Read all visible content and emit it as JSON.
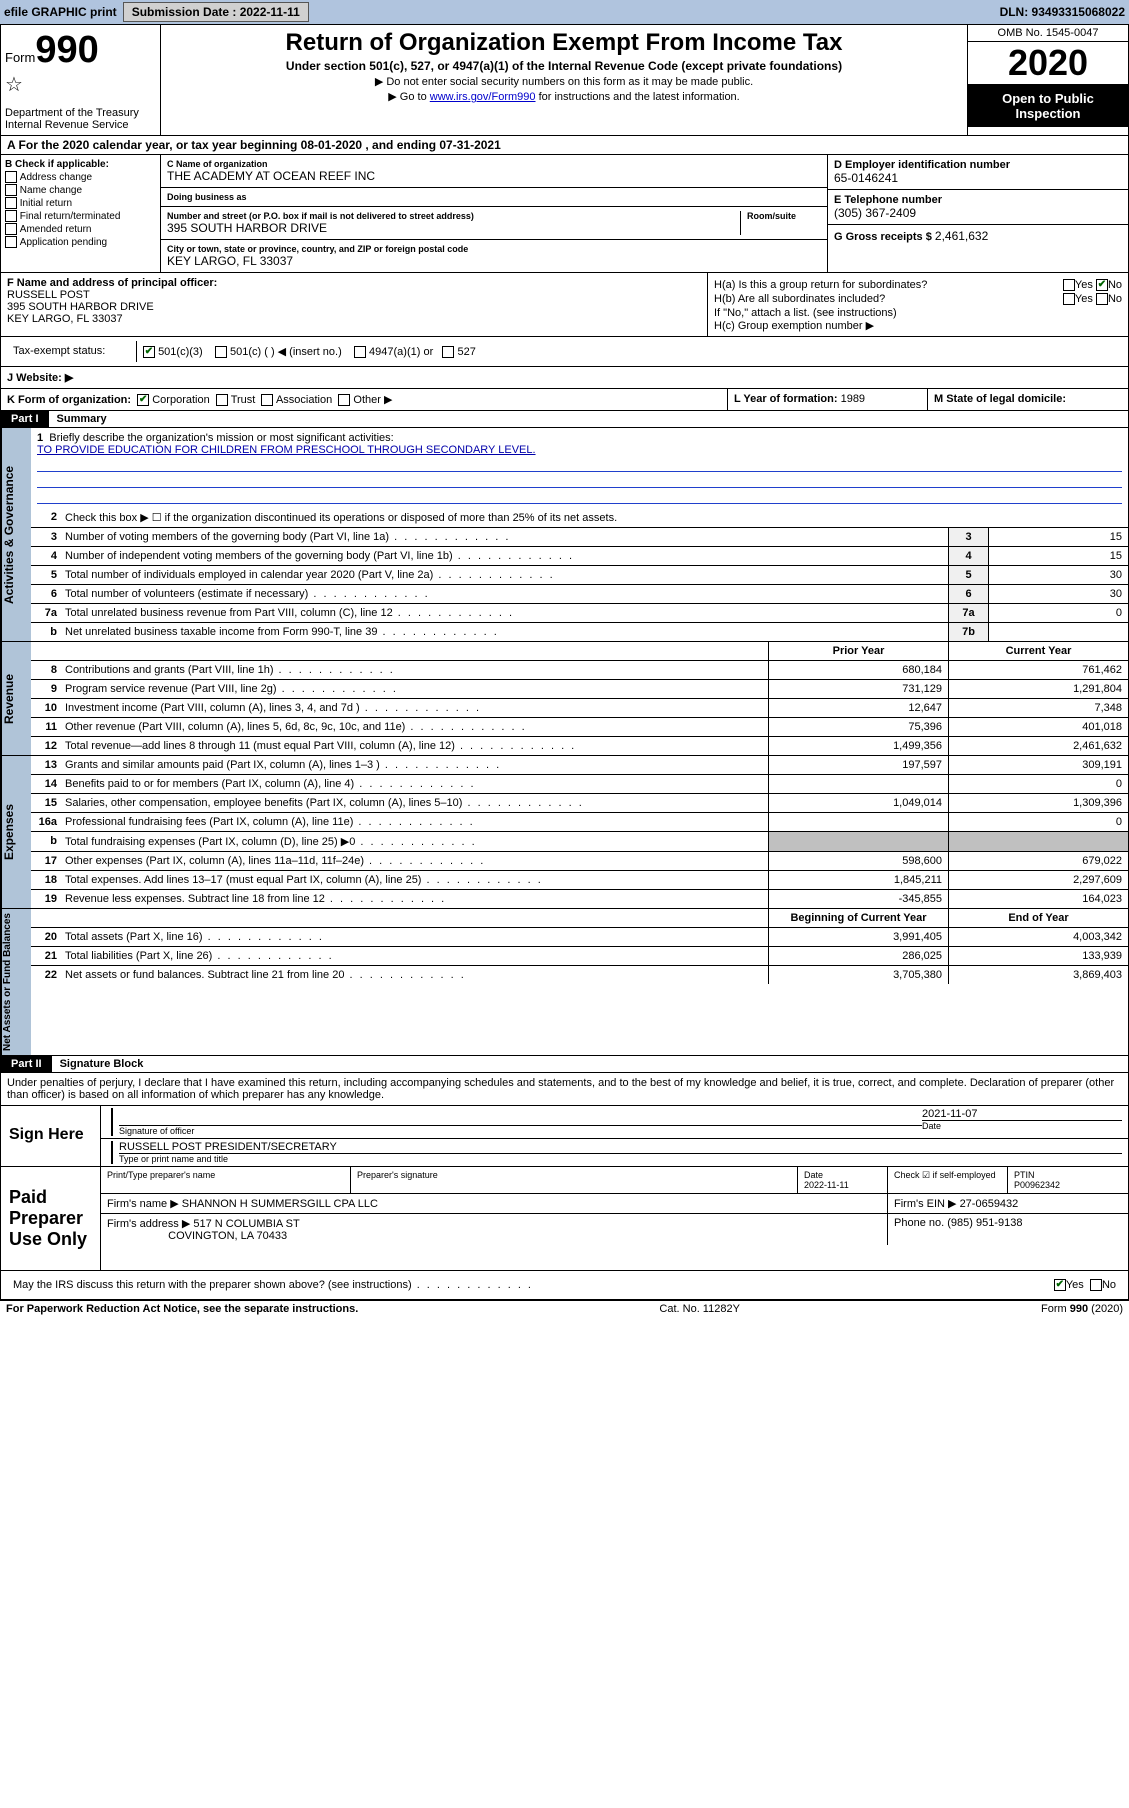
{
  "topbar": {
    "efile": "efile GRAPHIC print",
    "submission_label": "Submission Date : 2022-11-11",
    "dln": "DLN: 93493315068022"
  },
  "header": {
    "form_label": "Form",
    "form_number": "990",
    "title": "Return of Organization Exempt From Income Tax",
    "subtitle": "Under section 501(c), 527, or 4947(a)(1) of the Internal Revenue Code (except private foundations)",
    "note1": "▶ Do not enter social security numbers on this form as it may be made public.",
    "note2_prefix": "▶ Go to ",
    "note2_link": "www.irs.gov/Form990",
    "note2_suffix": " for instructions and the latest information.",
    "dept": "Department of the Treasury",
    "irs": "Internal Revenue Service",
    "omb": "OMB No. 1545-0047",
    "year": "2020",
    "open_public": "Open to Public Inspection"
  },
  "section_a": "A For the 2020 calendar year, or tax year beginning 08-01-2020   , and ending 07-31-2021",
  "check_b": {
    "label": "B Check if applicable:",
    "options": [
      "Address change",
      "Name change",
      "Initial return",
      "Final return/terminated",
      "Amended return",
      "Application pending"
    ]
  },
  "col_c": {
    "name_label": "C Name of organization",
    "name": "THE ACADEMY AT OCEAN REEF INC",
    "dba_label": "Doing business as",
    "dba": "",
    "street_label": "Number and street (or P.O. box if mail is not delivered to street address)",
    "room_label": "Room/suite",
    "street": "395 SOUTH HARBOR DRIVE",
    "city_label": "City or town, state or province, country, and ZIP or foreign postal code",
    "city": "KEY LARGO, FL  33037"
  },
  "col_d": {
    "ein_label": "D Employer identification number",
    "ein": "65-0146241",
    "phone_label": "E Telephone number",
    "phone": "(305) 367-2409",
    "gross_label": "G Gross receipts $",
    "gross": "2,461,632"
  },
  "col_f": {
    "label": "F Name and address of principal officer:",
    "name": "RUSSELL POST",
    "street": "395 SOUTH HARBOR DRIVE",
    "city": "KEY LARGO, FL  33037"
  },
  "col_h": {
    "ha_label": "H(a)  Is this a group return for subordinates?",
    "hb_label": "H(b)  Are all subordinates included?",
    "hb_note": "If \"No,\" attach a list. (see instructions)",
    "hc_label": "H(c)  Group exemption number ▶",
    "yes": "Yes",
    "no": "No"
  },
  "tax_status": {
    "label": "Tax-exempt status:",
    "opt1": "501(c)(3)",
    "opt2": "501(c) (  ) ◀ (insert no.)",
    "opt3": "4947(a)(1) or",
    "opt4": "527"
  },
  "website": {
    "label": "J   Website: ▶"
  },
  "row_k": {
    "k_label": "K Form of organization:",
    "k_opts": [
      "Corporation",
      "Trust",
      "Association",
      "Other ▶"
    ],
    "l_label": "L Year of formation:",
    "l_val": "1989",
    "m_label": "M State of legal domicile:",
    "m_val": ""
  },
  "part1": {
    "header": "Part I",
    "title": "Summary"
  },
  "governance": {
    "tab": "Activities & Governance",
    "line1_label": "Briefly describe the organization's mission or most significant activities:",
    "mission": "TO PROVIDE EDUCATION FOR CHILDREN FROM PRESCHOOL THROUGH SECONDARY LEVEL.",
    "line2": "Check this box ▶ ☐  if the organization discontinued its operations or disposed of more than 25% of its net assets.",
    "lines": [
      {
        "n": "3",
        "desc": "Number of voting members of the governing body (Part VI, line 1a)",
        "box": "3",
        "val": "15"
      },
      {
        "n": "4",
        "desc": "Number of independent voting members of the governing body (Part VI, line 1b)",
        "box": "4",
        "val": "15"
      },
      {
        "n": "5",
        "desc": "Total number of individuals employed in calendar year 2020 (Part V, line 2a)",
        "box": "5",
        "val": "30"
      },
      {
        "n": "6",
        "desc": "Total number of volunteers (estimate if necessary)",
        "box": "6",
        "val": "30"
      },
      {
        "n": "7a",
        "desc": "Total unrelated business revenue from Part VIII, column (C), line 12",
        "box": "7a",
        "val": "0"
      },
      {
        "n": "b",
        "desc": "Net unrelated business taxable income from Form 990-T, line 39",
        "box": "7b",
        "val": ""
      }
    ]
  },
  "revenue": {
    "tab": "Revenue",
    "head1": "Prior Year",
    "head2": "Current Year",
    "lines": [
      {
        "n": "8",
        "desc": "Contributions and grants (Part VIII, line 1h)",
        "c1": "680,184",
        "c2": "761,462"
      },
      {
        "n": "9",
        "desc": "Program service revenue (Part VIII, line 2g)",
        "c1": "731,129",
        "c2": "1,291,804"
      },
      {
        "n": "10",
        "desc": "Investment income (Part VIII, column (A), lines 3, 4, and 7d )",
        "c1": "12,647",
        "c2": "7,348"
      },
      {
        "n": "11",
        "desc": "Other revenue (Part VIII, column (A), lines 5, 6d, 8c, 9c, 10c, and 11e)",
        "c1": "75,396",
        "c2": "401,018"
      },
      {
        "n": "12",
        "desc": "Total revenue—add lines 8 through 11 (must equal Part VIII, column (A), line 12)",
        "c1": "1,499,356",
        "c2": "2,461,632"
      }
    ]
  },
  "expenses": {
    "tab": "Expenses",
    "lines": [
      {
        "n": "13",
        "desc": "Grants and similar amounts paid (Part IX, column (A), lines 1–3 )",
        "c1": "197,597",
        "c2": "309,191"
      },
      {
        "n": "14",
        "desc": "Benefits paid to or for members (Part IX, column (A), line 4)",
        "c1": "",
        "c2": "0"
      },
      {
        "n": "15",
        "desc": "Salaries, other compensation, employee benefits (Part IX, column (A), lines 5–10)",
        "c1": "1,049,014",
        "c2": "1,309,396"
      },
      {
        "n": "16a",
        "desc": "Professional fundraising fees (Part IX, column (A), line 11e)",
        "c1": "",
        "c2": "0"
      },
      {
        "n": "b",
        "desc": "Total fundraising expenses (Part IX, column (D), line 25) ▶0",
        "c1": "shade",
        "c2": "shade"
      },
      {
        "n": "17",
        "desc": "Other expenses (Part IX, column (A), lines 11a–11d, 11f–24e)",
        "c1": "598,600",
        "c2": "679,022"
      },
      {
        "n": "18",
        "desc": "Total expenses. Add lines 13–17 (must equal Part IX, column (A), line 25)",
        "c1": "1,845,211",
        "c2": "2,297,609"
      },
      {
        "n": "19",
        "desc": "Revenue less expenses. Subtract line 18 from line 12",
        "c1": "-345,855",
        "c2": "164,023"
      }
    ]
  },
  "netassets": {
    "tab": "Net Assets or Fund Balances",
    "head1": "Beginning of Current Year",
    "head2": "End of Year",
    "lines": [
      {
        "n": "20",
        "desc": "Total assets (Part X, line 16)",
        "c1": "3,991,405",
        "c2": "4,003,342"
      },
      {
        "n": "21",
        "desc": "Total liabilities (Part X, line 26)",
        "c1": "286,025",
        "c2": "133,939"
      },
      {
        "n": "22",
        "desc": "Net assets or fund balances. Subtract line 21 from line 20",
        "c1": "3,705,380",
        "c2": "3,869,403"
      }
    ]
  },
  "part2": {
    "header": "Part II",
    "title": "Signature Block"
  },
  "perjury": "Under penalties of perjury, I declare that I have examined this return, including accompanying schedules and statements, and to the best of my knowledge and belief, it is true, correct, and complete. Declaration of preparer (other than officer) is based on all information of which preparer has any knowledge.",
  "sign": {
    "here": "Sign Here",
    "sig_label": "Signature of officer",
    "date_label": "Date",
    "date": "2021-11-07",
    "name": "RUSSELL POST PRESIDENT/SECRETARY",
    "name_label": "Type or print name and title"
  },
  "paid": {
    "label": "Paid Preparer Use Only",
    "h_name": "Print/Type preparer's name",
    "h_sig": "Preparer's signature",
    "h_date": "Date",
    "date": "2022-11-11",
    "h_check": "Check ☑ if self-employed",
    "h_ptin": "PTIN",
    "ptin": "P00962342",
    "firm_name_label": "Firm's name    ▶",
    "firm_name": "SHANNON H SUMMERSGILL CPA LLC",
    "firm_ein_label": "Firm's EIN ▶",
    "firm_ein": "27-0659432",
    "firm_addr_label": "Firm's address ▶",
    "firm_addr1": "517 N COLUMBIA ST",
    "firm_addr2": "COVINGTON, LA  70433",
    "phone_label": "Phone no.",
    "phone": "(985) 951-9138"
  },
  "irs_discuss": "May the IRS discuss this return with the preparer shown above? (see instructions)",
  "footer": {
    "left": "For Paperwork Reduction Act Notice, see the separate instructions.",
    "mid": "Cat. No. 11282Y",
    "right": "Form 990 (2020)"
  }
}
